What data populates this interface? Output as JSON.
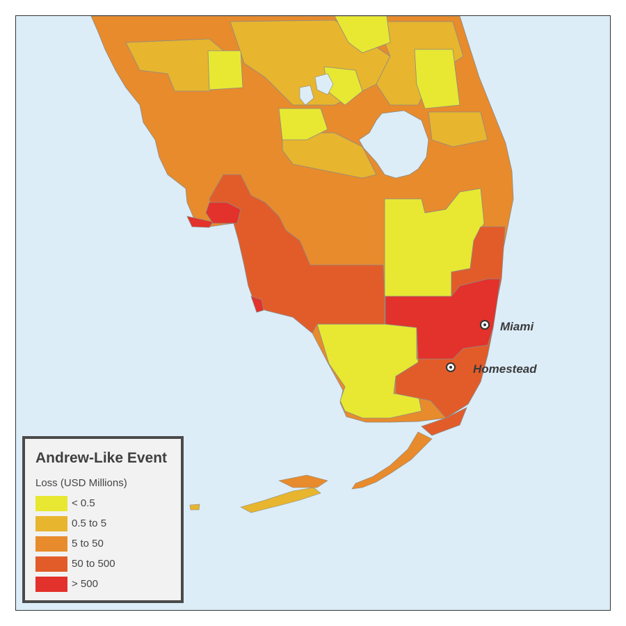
{
  "map": {
    "water_color": "#dcedf8",
    "county_line_color": "#8a8a8a"
  },
  "cities": [
    {
      "name": "Miami"
    },
    {
      "name": "Homestead"
    }
  ],
  "legend": {
    "title": "Andrew-Like Event",
    "subtitle": "Loss (USD Millions)",
    "items": [
      {
        "label": "< 0.5",
        "color": "#e8e832"
      },
      {
        "label": "0.5 to 5",
        "color": "#e7b52e"
      },
      {
        "label": "5 to 50",
        "color": "#e88b2c"
      },
      {
        "label": "50 to 500",
        "color": "#e25c2a"
      },
      {
        "label": "> 500",
        "color": "#e3312b"
      }
    ]
  },
  "icons": {
    "city_marker": "circle-dot-icon"
  }
}
